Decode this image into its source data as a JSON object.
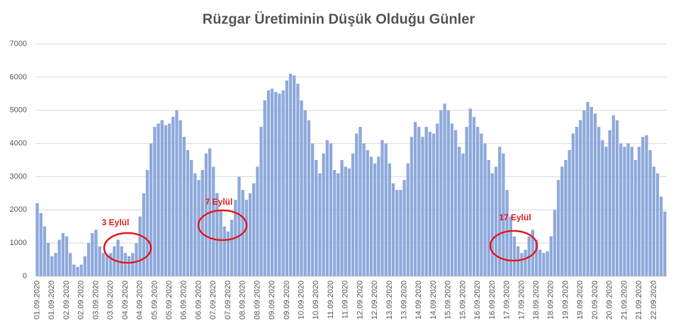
{
  "chart_data": {
    "type": "bar",
    "title": "Rüzgar Üretiminin Düşük Olduğu Günler",
    "categories": [
      "01.09.2020",
      null,
      null,
      null,
      "01.09.2020",
      null,
      null,
      null,
      "02.09.2020",
      null,
      null,
      null,
      "02.09.2020",
      null,
      null,
      null,
      "03.09.2020",
      null,
      null,
      null,
      "03.09.2020",
      null,
      null,
      null,
      "04.09.2020",
      null,
      null,
      null,
      "04.09.2020",
      null,
      null,
      null,
      "05.09.2020",
      null,
      null,
      null,
      "05.09.2020",
      null,
      null,
      null,
      "06.09.2020",
      null,
      null,
      null,
      "06.09.2020",
      null,
      null,
      null,
      "07.09.2020",
      null,
      null,
      null,
      "07.09.2020",
      null,
      null,
      null,
      "08.09.2020",
      null,
      null,
      null,
      "08.09.2020",
      null,
      null,
      null,
      "09.09.2020",
      null,
      null,
      null,
      "09.09.2020",
      null,
      null,
      null,
      "10.09.2020",
      null,
      null,
      null,
      "10.09.2020",
      null,
      null,
      null,
      "11.09.2020",
      null,
      null,
      null,
      "11.09.2020",
      null,
      null,
      null,
      "12.09.2020",
      null,
      null,
      null,
      "12.09.2020",
      null,
      null,
      null,
      "13.09.2020",
      null,
      null,
      null,
      "13.09.2020",
      null,
      null,
      null,
      "14.09.2020",
      null,
      null,
      null,
      "14.09.2020",
      null,
      null,
      null,
      "15.09.2020",
      null,
      null,
      null,
      "15.09.2020",
      null,
      null,
      null,
      "16.09.2020",
      null,
      null,
      null,
      "16.09.2020",
      null,
      null,
      null,
      "17.09.2020",
      null,
      null,
      null,
      "17.09.2020",
      null,
      null,
      null,
      "18.09.2020",
      null,
      null,
      null,
      "18.09.2020",
      null,
      null,
      null,
      "19.09.2020",
      null,
      null,
      null,
      "19.09.2020",
      null,
      null,
      null,
      "20.09.2020",
      null,
      null,
      null,
      "20.09.2020",
      null,
      null,
      null,
      "21.09.2020",
      null,
      null,
      null,
      "21.09.2020",
      null,
      null,
      null,
      "22.09.2020",
      null,
      null,
      null
    ],
    "values": [
      2200,
      1900,
      1500,
      1000,
      600,
      700,
      1100,
      1300,
      1200,
      700,
      350,
      280,
      350,
      600,
      1000,
      1300,
      1400,
      900,
      700,
      650,
      700,
      900,
      1100,
      900,
      700,
      600,
      700,
      1000,
      1800,
      2500,
      3200,
      4000,
      4500,
      4600,
      4700,
      4550,
      4600,
      4800,
      5000,
      4700,
      4200,
      3800,
      3500,
      3100,
      2900,
      3200,
      3700,
      3850,
      3300,
      2500,
      2000,
      1500,
      1350,
      1700,
      2300,
      3000,
      2600,
      2300,
      2500,
      2800,
      3300,
      4500,
      5300,
      5600,
      5650,
      5550,
      5500,
      5600,
      5900,
      6100,
      6050,
      5800,
      5300,
      5000,
      4700,
      4000,
      3500,
      3100,
      3700,
      4100,
      4000,
      3200,
      3100,
      3500,
      3300,
      3250,
      3700,
      4300,
      4500,
      4000,
      3800,
      3600,
      3400,
      3600,
      4100,
      4000,
      3400,
      2800,
      2600,
      2600,
      2900,
      3400,
      4200,
      4650,
      4500,
      4200,
      4500,
      4350,
      4300,
      4600,
      5000,
      5200,
      5000,
      4600,
      4400,
      3900,
      3700,
      4500,
      5050,
      4800,
      4500,
      4300,
      4000,
      3500,
      3100,
      3300,
      3900,
      3700,
      2600,
      1800,
      1200,
      900,
      700,
      800,
      1200,
      1400,
      1100,
      800,
      700,
      750,
      1200,
      2000,
      2900,
      3300,
      3500,
      3800,
      4300,
      4500,
      4700,
      5000,
      5250,
      5100,
      4900,
      4500,
      4100,
      3900,
      4400,
      4850,
      4700,
      4000,
      3900,
      4000,
      3900,
      3500,
      3900,
      4200,
      4250,
      3800,
      3300,
      3100,
      2400,
      1950
    ],
    "color": "#8faadc",
    "ylim": [
      0,
      7000
    ],
    "yticks": [
      0,
      1000,
      2000,
      3000,
      4000,
      5000,
      6000,
      7000
    ],
    "grid": true,
    "annotations": [
      "3 Eylül",
      "7 Eylül",
      "17 Eylül"
    ],
    "annotation_color": "#e31e24"
  }
}
